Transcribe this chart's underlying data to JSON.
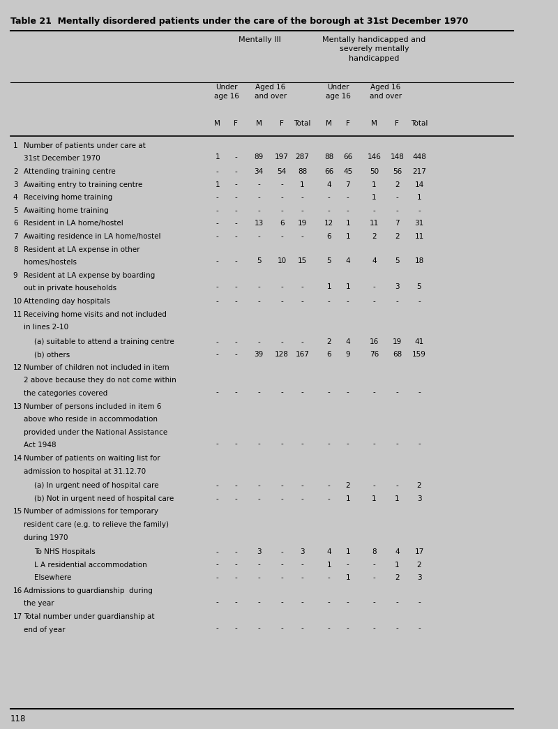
{
  "title": "Table 21  Mentally disordered patients under the care of the borough at 31st December 1970",
  "bg_color": "#c8c8c8",
  "col_labels": [
    "M",
    "F",
    "M",
    "F",
    "Total",
    "M",
    "F",
    "M",
    "F",
    "Total"
  ],
  "rows": [
    {
      "num": "1",
      "label": [
        "Number of patients under care at",
        "31st December 1970"
      ],
      "data": [
        "1",
        "-",
        "89",
        "197",
        "287",
        "88",
        "66",
        "146",
        "148",
        "448"
      ]
    },
    {
      "num": "2",
      "label": [
        "Attending training centre"
      ],
      "data": [
        "-",
        "-",
        "34",
        "54",
        "88",
        "66",
        "45",
        "50",
        "56",
        "217"
      ]
    },
    {
      "num": "3",
      "label": [
        "Awaiting entry to training centre"
      ],
      "data": [
        "1",
        "-",
        "-",
        "-",
        "1",
        "4",
        "7",
        "1",
        "2",
        "14"
      ]
    },
    {
      "num": "4",
      "label": [
        "Receiving home training"
      ],
      "data": [
        "-",
        "-",
        "-",
        "-",
        "-",
        "-",
        "-",
        "1",
        "-",
        "1"
      ]
    },
    {
      "num": "5",
      "label": [
        "Awaiting home training"
      ],
      "data": [
        "-",
        "-",
        "-",
        "-",
        "-",
        "-",
        "-",
        "-",
        "-",
        "-"
      ]
    },
    {
      "num": "6",
      "label": [
        "Resident in LA home/hostel"
      ],
      "data": [
        "-",
        "-",
        "13",
        "6",
        "19",
        "12",
        "1",
        "11",
        "7",
        "31"
      ]
    },
    {
      "num": "7",
      "label": [
        "Awaiting residence in LA home/hostel"
      ],
      "data": [
        "-",
        "-",
        "-",
        "-",
        "-",
        "6",
        "1",
        "2",
        "2",
        "11"
      ]
    },
    {
      "num": "8",
      "label": [
        "Resident at LA expense in other",
        "homes/hostels"
      ],
      "data": [
        "-",
        "-",
        "5",
        "10",
        "15",
        "5",
        "4",
        "4",
        "5",
        "18"
      ]
    },
    {
      "num": "9",
      "label": [
        "Resident at LA expense by boarding",
        "out in private households"
      ],
      "data": [
        "-",
        "-",
        "-",
        "-",
        "-",
        "1",
        "1",
        "-",
        "3",
        "5"
      ]
    },
    {
      "num": "10",
      "label": [
        "Attending day hospitals"
      ],
      "data": [
        "-",
        "-",
        "-",
        "-",
        "-",
        "-",
        "-",
        "-",
        "-",
        "-"
      ]
    },
    {
      "num": "11",
      "label": [
        "Receiving home visits and not included",
        "in lines 2-10"
      ],
      "data": null
    },
    {
      "num": "",
      "label": [
        "(a) suitable to attend a training centre"
      ],
      "data": [
        "-",
        "-",
        "-",
        "-",
        "-",
        "2",
        "4",
        "16",
        "19",
        "41"
      ]
    },
    {
      "num": "",
      "label": [
        "(b) others"
      ],
      "data": [
        "-",
        "-",
        "39",
        "128",
        "167",
        "6",
        "9",
        "76",
        "68",
        "159"
      ]
    },
    {
      "num": "12",
      "label": [
        "Number of children not included in item",
        "2 above because they do not come within",
        "the categories covered"
      ],
      "data": [
        "-",
        "-",
        "-",
        "-",
        "-",
        "-",
        "-",
        "-",
        "-",
        "-"
      ]
    },
    {
      "num": "13",
      "label": [
        "Number of persons included in item 6",
        "above who reside in accommodation",
        "provided under the National Assistance",
        "Act 1948"
      ],
      "data": [
        "-",
        "-",
        "-",
        "-",
        "-",
        "-",
        "-",
        "-",
        "-",
        "-"
      ]
    },
    {
      "num": "14",
      "label": [
        "Number of patients on waiting list for",
        "admission to hospital at 31.12.70"
      ],
      "data": null
    },
    {
      "num": "",
      "label": [
        "(a) In urgent need of hospital care"
      ],
      "data": [
        "-",
        "-",
        "-",
        "-",
        "-",
        "-",
        "2",
        "-",
        "-",
        "2"
      ]
    },
    {
      "num": "",
      "label": [
        "(b) Not in urgent need of hospital care"
      ],
      "data": [
        "-",
        "-",
        "-",
        "-",
        "-",
        "-",
        "1",
        "1",
        "1",
        "3"
      ]
    },
    {
      "num": "15",
      "label": [
        "Number of admissions for temporary",
        "resident care (e.g. to relieve the family)",
        "during 1970"
      ],
      "data": null
    },
    {
      "num": "",
      "label": [
        "To NHS Hospitals"
      ],
      "data": [
        "-",
        "-",
        "3",
        "-",
        "3",
        "4",
        "1",
        "8",
        "4",
        "17"
      ]
    },
    {
      "num": "",
      "label": [
        "L A residential accommodation"
      ],
      "data": [
        "-",
        "-",
        "-",
        "-",
        "-",
        "1",
        "-",
        "-",
        "1",
        "2"
      ]
    },
    {
      "num": "",
      "label": [
        "Elsewhere"
      ],
      "data": [
        "-",
        "-",
        "-",
        "-",
        "-",
        "-",
        "1",
        "-",
        "2",
        "3"
      ]
    },
    {
      "num": "16",
      "label": [
        "Admissions to guardianship  during",
        "the year"
      ],
      "data": [
        "-",
        "-",
        "-",
        "-",
        "-",
        "-",
        "-",
        "-",
        "-",
        "-"
      ]
    },
    {
      "num": "17",
      "label": [
        "Total number under guardianship at",
        "end of year"
      ],
      "data": [
        "-",
        "-",
        "-",
        "-",
        "-",
        "-",
        "-",
        "-",
        "-",
        "-"
      ]
    }
  ],
  "page_number": "118",
  "font_size": 7.5,
  "title_font_size": 9.0
}
